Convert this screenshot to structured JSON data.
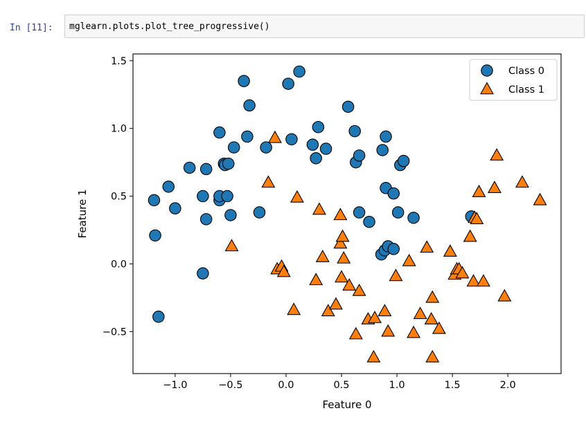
{
  "cell": {
    "prompt": "In [11]:",
    "code": "mglearn.plots.plot_tree_progressive()"
  },
  "chart_data": {
    "type": "scatter",
    "xlabel": "Feature 0",
    "ylabel": "Feature 1",
    "xlim": [
      -1.38,
      2.48
    ],
    "ylim": [
      -0.81,
      1.55
    ],
    "xticks": [
      -1.0,
      -0.5,
      0.0,
      0.5,
      1.0,
      1.5,
      2.0
    ],
    "xtick_labels": [
      "−1.0",
      "−0.5",
      "0.0",
      "0.5",
      "1.0",
      "1.5",
      "2.0"
    ],
    "yticks": [
      -0.5,
      0.0,
      0.5,
      1.0,
      1.5
    ],
    "ytick_labels": [
      "−0.5",
      "0.0",
      "0.5",
      "1.0",
      "1.5"
    ],
    "legend_position": "top-right",
    "grid": false,
    "series": [
      {
        "name": "Class 0",
        "marker": "circle",
        "color": "#1f77b4",
        "points": [
          [
            -1.19,
            0.47
          ],
          [
            -1.18,
            0.21
          ],
          [
            -1.15,
            -0.39
          ],
          [
            -1.06,
            0.57
          ],
          [
            -1.0,
            0.41
          ],
          [
            -0.87,
            0.71
          ],
          [
            -0.75,
            0.5
          ],
          [
            -0.75,
            -0.07
          ],
          [
            -0.72,
            0.33
          ],
          [
            -0.72,
            0.7
          ],
          [
            -0.6,
            0.97
          ],
          [
            -0.6,
            0.47
          ],
          [
            -0.6,
            0.5
          ],
          [
            -0.56,
            0.74
          ],
          [
            -0.55,
            0.73
          ],
          [
            -0.53,
            0.5
          ],
          [
            -0.52,
            0.74
          ],
          [
            -0.5,
            0.36
          ],
          [
            -0.47,
            0.86
          ],
          [
            -0.38,
            1.35
          ],
          [
            -0.35,
            0.94
          ],
          [
            -0.33,
            1.17
          ],
          [
            -0.24,
            0.38
          ],
          [
            -0.18,
            0.86
          ],
          [
            0.02,
            1.33
          ],
          [
            0.05,
            0.92
          ],
          [
            0.12,
            1.42
          ],
          [
            0.24,
            0.88
          ],
          [
            0.27,
            0.78
          ],
          [
            0.29,
            1.01
          ],
          [
            0.36,
            0.85
          ],
          [
            0.56,
            1.16
          ],
          [
            0.62,
            0.98
          ],
          [
            0.63,
            0.75
          ],
          [
            0.66,
            0.8
          ],
          [
            0.66,
            0.38
          ],
          [
            0.75,
            0.31
          ],
          [
            0.86,
            0.07
          ],
          [
            0.87,
            0.84
          ],
          [
            0.89,
            0.1
          ],
          [
            0.9,
            0.94
          ],
          [
            0.9,
            0.56
          ],
          [
            0.92,
            0.13
          ],
          [
            0.97,
            0.11
          ],
          [
            0.97,
            0.52
          ],
          [
            1.01,
            0.38
          ],
          [
            1.03,
            0.73
          ],
          [
            1.06,
            0.76
          ],
          [
            1.15,
            0.34
          ],
          [
            1.67,
            0.35
          ]
        ]
      },
      {
        "name": "Class 1",
        "marker": "triangle",
        "color": "#ff7f0e",
        "points": [
          [
            -0.49,
            0.13
          ],
          [
            -0.16,
            0.6
          ],
          [
            -0.1,
            0.93
          ],
          [
            -0.08,
            -0.04
          ],
          [
            -0.04,
            -0.02
          ],
          [
            -0.02,
            -0.06
          ],
          [
            0.07,
            -0.34
          ],
          [
            0.1,
            0.49
          ],
          [
            0.27,
            -0.12
          ],
          [
            0.3,
            0.4
          ],
          [
            0.33,
            0.05
          ],
          [
            0.38,
            -0.35
          ],
          [
            0.45,
            -0.3
          ],
          [
            0.49,
            0.15
          ],
          [
            0.49,
            0.36
          ],
          [
            0.5,
            -0.1
          ],
          [
            0.51,
            0.2
          ],
          [
            0.52,
            0.04
          ],
          [
            0.57,
            -0.16
          ],
          [
            0.63,
            -0.52
          ],
          [
            0.66,
            -0.2
          ],
          [
            0.74,
            -0.41
          ],
          [
            0.79,
            -0.69
          ],
          [
            0.8,
            -0.4
          ],
          [
            0.89,
            -0.35
          ],
          [
            0.92,
            -0.5
          ],
          [
            0.99,
            -0.09
          ],
          [
            1.11,
            0.02
          ],
          [
            1.15,
            -0.51
          ],
          [
            1.21,
            -0.37
          ],
          [
            1.27,
            0.12
          ],
          [
            1.31,
            -0.41
          ],
          [
            1.32,
            -0.69
          ],
          [
            1.32,
            -0.25
          ],
          [
            1.38,
            -0.48
          ],
          [
            1.48,
            0.09
          ],
          [
            1.52,
            -0.08
          ],
          [
            1.54,
            -0.04
          ],
          [
            1.56,
            -0.04
          ],
          [
            1.59,
            -0.07
          ],
          [
            1.66,
            0.2
          ],
          [
            1.69,
            -0.13
          ],
          [
            1.7,
            0.34
          ],
          [
            1.72,
            0.33
          ],
          [
            1.74,
            0.53
          ],
          [
            1.78,
            -0.13
          ],
          [
            1.88,
            0.56
          ],
          [
            1.9,
            0.8
          ],
          [
            1.97,
            -0.24
          ],
          [
            2.13,
            0.6
          ],
          [
            2.29,
            0.47
          ]
        ]
      }
    ]
  }
}
